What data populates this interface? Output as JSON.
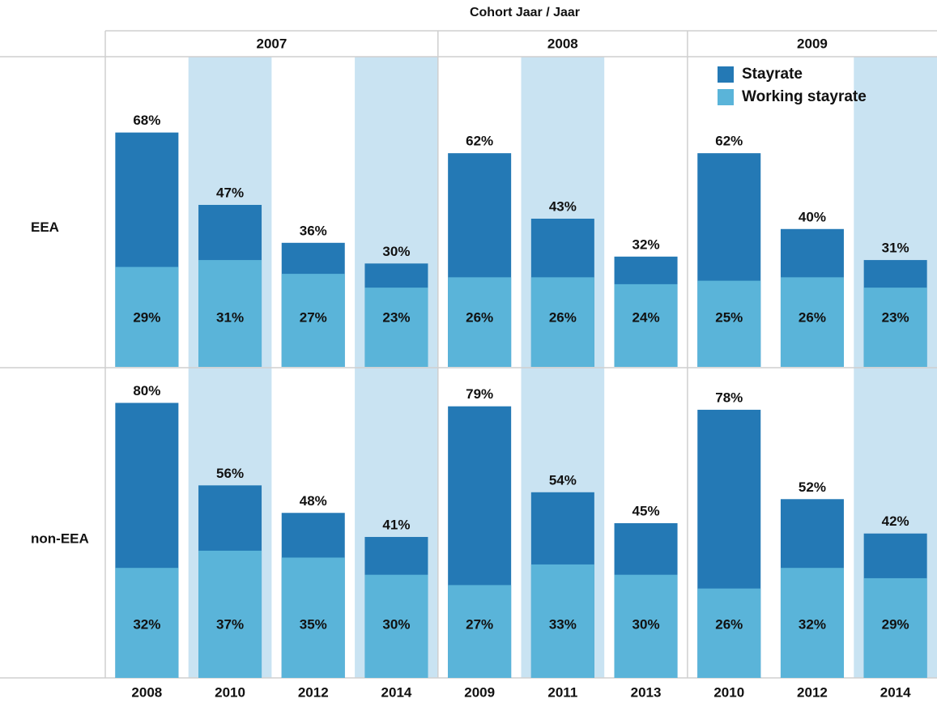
{
  "chart_data": {
    "type": "bar",
    "title": "Cohort Jaar / Jaar",
    "groups": [
      {
        "name": "2007",
        "categories": [
          "2008",
          "2010",
          "2012",
          "2014"
        ]
      },
      {
        "name": "2008",
        "categories": [
          "2009",
          "2011",
          "2013"
        ]
      },
      {
        "name": "2009",
        "categories": [
          "2010",
          "2012",
          "2014"
        ]
      }
    ],
    "ylim": [
      0,
      90
    ],
    "legend": "upper right",
    "panels": [
      {
        "name": "EEA",
        "series": [
          {
            "name": "Stayrate",
            "color": "#2479b5",
            "values": [
              68,
              47,
              36,
              30,
              62,
              43,
              32,
              62,
              40,
              31
            ],
            "value_labels": [
              "68%",
              "47%",
              "36%",
              "30%",
              "62%",
              "43%",
              "32%",
              "62%",
              "40%",
              "31%"
            ]
          },
          {
            "name": "Working stayrate",
            "color": "#5ab4d9",
            "values": [
              29,
              31,
              27,
              23,
              26,
              26,
              24,
              25,
              26,
              23
            ],
            "value_labels": [
              "29%",
              "31%",
              "27%",
              "23%",
              "26%",
              "26%",
              "24%",
              "25%",
              "26%",
              "23%"
            ]
          }
        ]
      },
      {
        "name": "non-EEA",
        "series": [
          {
            "name": "Stayrate",
            "color": "#2479b5",
            "values": [
              80,
              56,
              48,
              41,
              79,
              54,
              45,
              78,
              52,
              42
            ],
            "value_labels": [
              "80%",
              "56%",
              "48%",
              "41%",
              "79%",
              "54%",
              "45%",
              "78%",
              "52%",
              "42%"
            ]
          },
          {
            "name": "Working stayrate",
            "color": "#5ab4d9",
            "values": [
              32,
              37,
              35,
              30,
              27,
              33,
              30,
              26,
              32,
              29
            ],
            "value_labels": [
              "32%",
              "37%",
              "35%",
              "30%",
              "27%",
              "33%",
              "30%",
              "26%",
              "32%",
              "29%"
            ]
          }
        ]
      }
    ]
  }
}
